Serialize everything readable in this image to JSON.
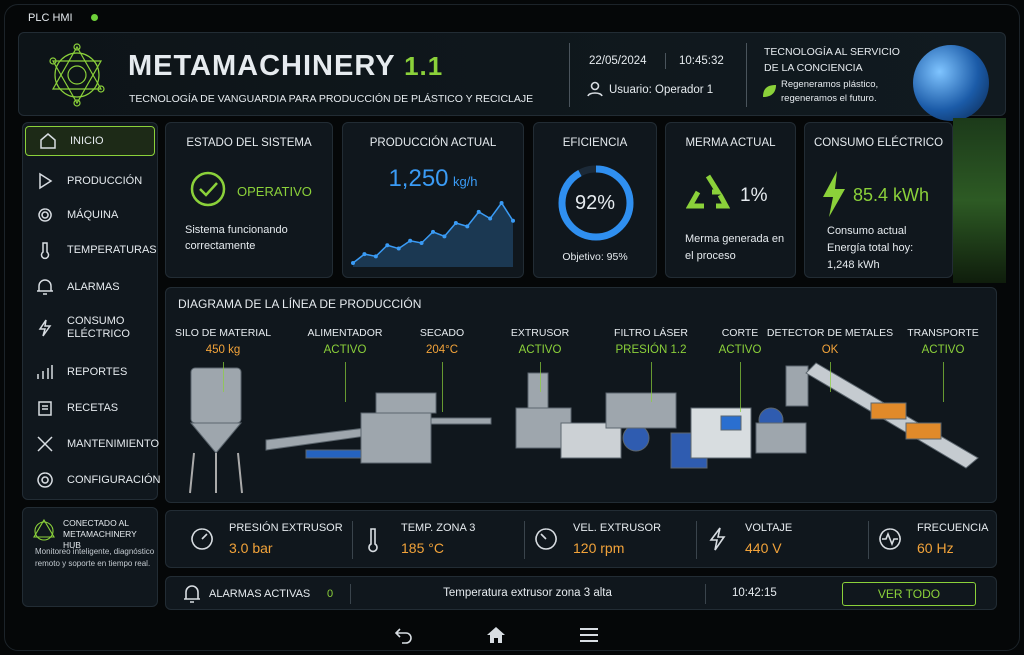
{
  "status_bar": {
    "label": "PLC HMI"
  },
  "header": {
    "brand": "METAMACHINERY",
    "version": "1.1",
    "tagline": "TECNOLOGÍA DE VANGUARDIA PARA PRODUCCIÓN DE PLÁSTICO Y RECICLAJE",
    "date": "22/05/2024",
    "time": "10:45:32",
    "user": "Usuario: Operador 1",
    "slogan_lines": [
      "TECNOLOGÍA AL SERVICIO",
      "DE LA CONCIENCIA"
    ],
    "claim_lines": [
      "Regeneramos plástico,",
      "regeneramos el futuro."
    ]
  },
  "menu": [
    "INICIO",
    "PRODUCCIÓN",
    "MÁQUINA",
    "TEMPERATURAS",
    "ALARMAS",
    "CONSUMO ELÉCTRICO",
    "REPORTES",
    "RECETAS",
    "MANTENIMIENTO",
    "CONFIGURACIÓN"
  ],
  "hub": {
    "title": "CONECTADO AL METAMACHINERY HUB",
    "text": "Monitoreo inteligente, diagnóstico remoto y soporte en tiempo real."
  },
  "cards": {
    "system": {
      "title": "ESTADO DEL SISTEMA",
      "status": "OPERATIVO",
      "text": "Sistema funcionando correctamente"
    },
    "production": {
      "title": "PRODUCCIÓN ACTUAL",
      "value": "1,250",
      "unit": "kg/h",
      "trend": [
        12,
        20,
        18,
        28,
        25,
        32,
        30,
        40,
        36,
        48,
        45,
        58,
        52,
        66,
        50
      ]
    },
    "efficiency": {
      "title": "EFICIENCIA",
      "value": 92,
      "value_label": "92%",
      "target": "Objetivo: 95%"
    },
    "waste": {
      "title": "MERMA ACTUAL",
      "value": "1%",
      "text": "Merma generada en el proceso"
    },
    "power": {
      "title": "CONSUMO ELÉCTRICO",
      "value": "85.4 kWh",
      "lines": [
        "Consumo actual",
        "Energía total hoy:",
        "1,248 kWh"
      ]
    }
  },
  "diagram": {
    "title": "DIAGRAMA DE LA LÍNEA DE PRODUCCIÓN",
    "stations": [
      {
        "name": "SILO DE MATERIAL",
        "status": "450 kg"
      },
      {
        "name": "ALIMENTADOR",
        "status": "ACTIVO"
      },
      {
        "name": "SECADO",
        "status": "204°C"
      },
      {
        "name": "EXTRUSOR",
        "status": "ACTIVO"
      },
      {
        "name": "FILTRO LÁSER",
        "status": "PRESIÓN 1.2"
      },
      {
        "name": "CORTE",
        "status": "ACTIVO"
      },
      {
        "name": "DETECTOR DE METALES",
        "status": "OK"
      },
      {
        "name": "TRANSPORTE",
        "status": "ACTIVO"
      }
    ]
  },
  "metrics": [
    {
      "label": "PRESIÓN EXTRUSOR",
      "value": "3.0 bar"
    },
    {
      "label": "TEMP. ZONA 3",
      "value": "185 °C"
    },
    {
      "label": "VEL. EXTRUSOR",
      "value": "120 rpm"
    },
    {
      "label": "VOLTAJE",
      "value": "440 V"
    },
    {
      "label": "FRECUENCIA",
      "value": "60 Hz"
    }
  ],
  "alarms": {
    "label": "ALARMAS ACTIVAS",
    "count": "0",
    "message": "Temperatura extrusor zona 3 alta",
    "time": "10:42:15",
    "button": "VER TODO"
  }
}
